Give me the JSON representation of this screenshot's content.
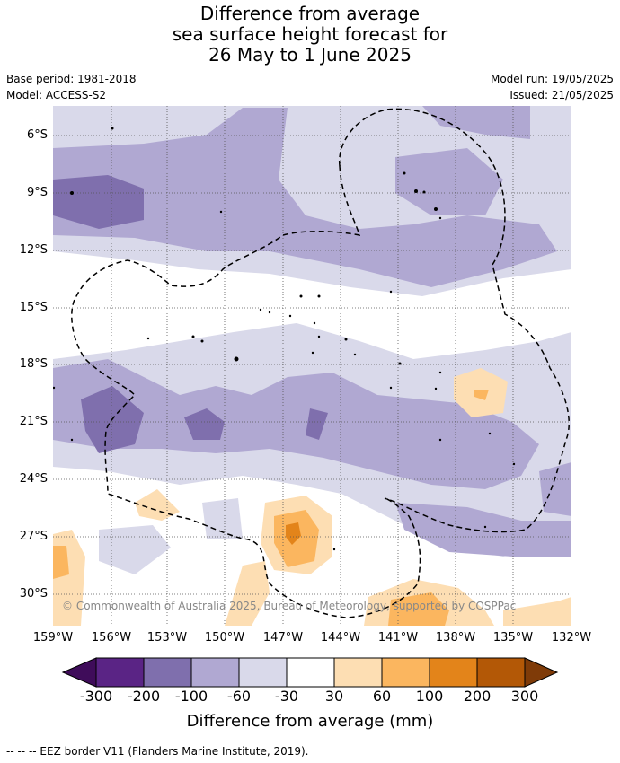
{
  "title": {
    "line1": "Difference from average",
    "line2": "sea surface height forecast for",
    "line3": "26 May to 1 June 2025"
  },
  "meta": {
    "base_period": "Base period: 1981-2018",
    "model": "Model: ACCESS-S2",
    "model_run": "Model run: 19/05/2025",
    "issued": "Issued: 21/05/2025"
  },
  "axes": {
    "lat_labels": [
      "6°S",
      "9°S",
      "12°S",
      "15°S",
      "18°S",
      "21°S",
      "24°S",
      "27°S",
      "30°S"
    ],
    "lon_labels": [
      "159°W",
      "156°W",
      "153°W",
      "150°W",
      "147°W",
      "144°W",
      "141°W",
      "138°W",
      "135°W",
      "132°W"
    ]
  },
  "copyright": "© Commonwealth of Australia 2025, Bureau of Meteorology, supported by COSPPac",
  "colorbar": {
    "ticks": [
      "-300",
      "-200",
      "-100",
      "-60",
      "-30",
      "30",
      "60",
      "100",
      "200",
      "300"
    ],
    "colors": [
      "#3f0c5a",
      "#5a2485",
      "#7f6fad",
      "#b0a8d2",
      "#d9d9ea",
      "#ffffff",
      "#fddeb3",
      "#fbb65f",
      "#e3841a",
      "#b35806",
      "#7f3b08"
    ],
    "label": "Difference from average (mm)"
  },
  "footer": "--  --  -- EEZ border V11 (Flanders Marine Institute, 2019)."
}
